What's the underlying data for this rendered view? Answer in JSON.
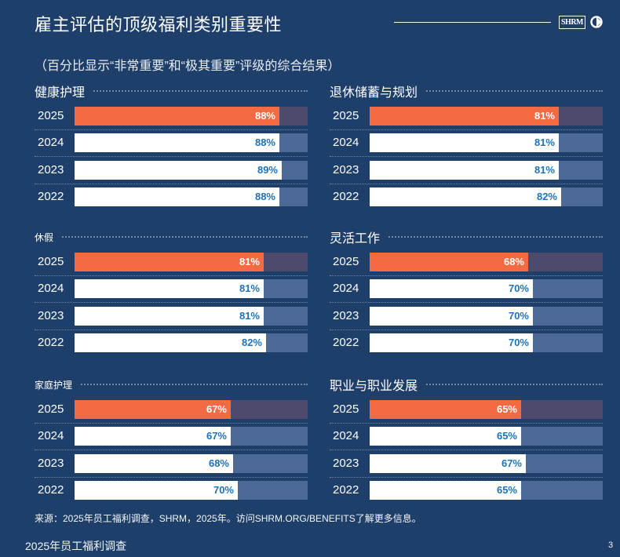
{
  "header": {
    "title": "雇主评估的顶级福利类别重要性",
    "subtitle": "（百分比显示“非常重要”和“极其重要”评级的综合结果）",
    "logo_text": "SHRM"
  },
  "colors": {
    "background": "#1f3f6b",
    "highlight": "#f26b43",
    "bar": "#ffffff",
    "value_text": "#1f72b5"
  },
  "chart_data": [
    {
      "type": "bar",
      "orientation": "horizontal",
      "title": "健康护理",
      "categories": [
        "2025",
        "2024",
        "2023",
        "2022"
      ],
      "values": [
        88,
        88,
        89,
        88
      ],
      "labels": [
        "88%",
        "88%",
        "89%",
        "88%"
      ],
      "xlim": [
        0,
        100
      ]
    },
    {
      "type": "bar",
      "orientation": "horizontal",
      "title": "退休储蓄与规划",
      "categories": [
        "2025",
        "2024",
        "2023",
        "2022"
      ],
      "values": [
        81,
        81,
        81,
        82
      ],
      "labels": [
        "81%",
        "81%",
        "81%",
        "82%"
      ],
      "xlim": [
        0,
        100
      ]
    },
    {
      "type": "bar",
      "orientation": "horizontal",
      "title": "休假",
      "categories": [
        "2025",
        "2024",
        "2023",
        "2022"
      ],
      "values": [
        81,
        81,
        81,
        82
      ],
      "labels": [
        "81%",
        "81%",
        "81%",
        "82%"
      ],
      "xlim": [
        0,
        100
      ]
    },
    {
      "type": "bar",
      "orientation": "horizontal",
      "title": "灵活工作",
      "categories": [
        "2025",
        "2024",
        "2023",
        "2022"
      ],
      "values": [
        68,
        70,
        70,
        70
      ],
      "labels": [
        "68%",
        "70%",
        "70%",
        "70%"
      ],
      "xlim": [
        0,
        100
      ]
    },
    {
      "type": "bar",
      "orientation": "horizontal",
      "title": "家庭护理",
      "categories": [
        "2025",
        "2024",
        "2023",
        "2022"
      ],
      "values": [
        67,
        67,
        68,
        70
      ],
      "labels": [
        "67%",
        "67%",
        "68%",
        "70%"
      ],
      "xlim": [
        0,
        100
      ]
    },
    {
      "type": "bar",
      "orientation": "horizontal",
      "title": "职业与职业发展",
      "categories": [
        "2025",
        "2024",
        "2023",
        "2022"
      ],
      "values": [
        65,
        65,
        67,
        65
      ],
      "labels": [
        "65%",
        "65%",
        "67%",
        "65%"
      ],
      "xlim": [
        0,
        100
      ]
    }
  ],
  "source": "来源：2025年员工福利调查，SHRM，2025年。访问SHRM.ORG/BENEFITS了解更多信息。",
  "footer": {
    "report_name": "2025年员工福利调查",
    "page_number": "3"
  }
}
